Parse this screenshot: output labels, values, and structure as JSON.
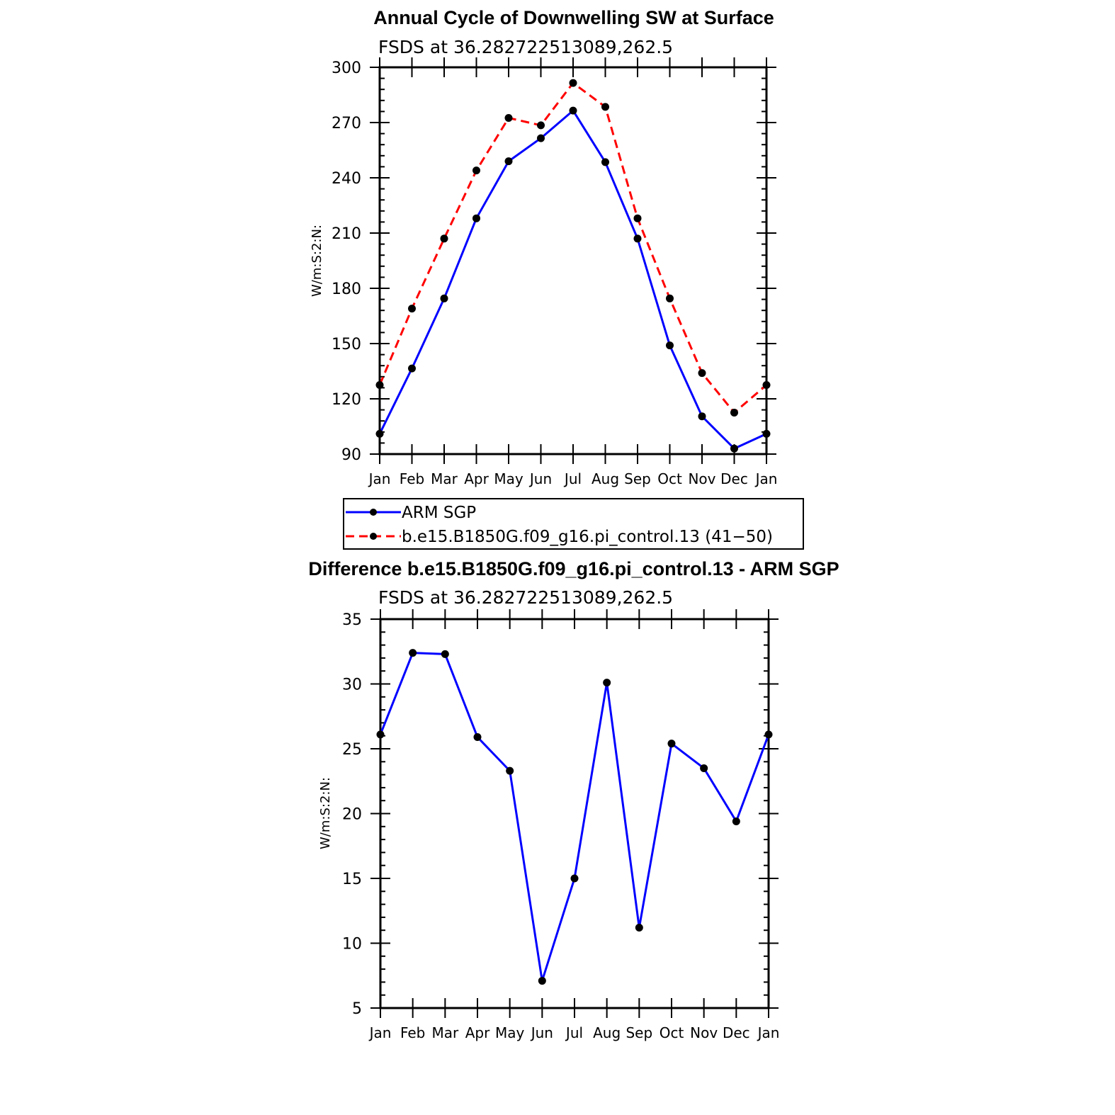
{
  "chart_data": [
    {
      "type": "line",
      "title": "Annual Cycle of Downwelling SW at Surface",
      "subtitle": "FSDS at 36.282722513089,262.5",
      "ylabel": "W/m:S:2:N:",
      "xlabel": "",
      "categories": [
        "Jan",
        "Feb",
        "Mar",
        "Apr",
        "May",
        "Jun",
        "Jul",
        "Aug",
        "Sep",
        "Oct",
        "Nov",
        "Dec",
        "Jan"
      ],
      "ylim": [
        90,
        300
      ],
      "yticks": [
        90,
        120,
        150,
        180,
        210,
        240,
        270,
        300
      ],
      "series": [
        {
          "name": "ARM SGP",
          "color": "#0000ff",
          "dash": "solid",
          "values": [
            101,
            136.5,
            174.5,
            218,
            249,
            261.5,
            276.5,
            248.5,
            207,
            149,
            110.5,
            93,
            101
          ]
        },
        {
          "name": "b.e15.B1850G.f09_g16.pi_control.13 (41−50)",
          "color": "#ff0000",
          "dash": "dashed",
          "values": [
            127.5,
            169,
            207,
            244,
            272.5,
            268.5,
            291.5,
            278.5,
            218,
            174.5,
            134,
            112.5,
            127.5
          ]
        }
      ],
      "legend_placement": "below"
    },
    {
      "type": "line",
      "title": "Difference b.e15.B1850G.f09_g16.pi_control.13 - ARM SGP",
      "subtitle": "FSDS at 36.282722513089,262.5",
      "ylabel": "W/m:S:2:N:",
      "xlabel": "",
      "categories": [
        "Jan",
        "Feb",
        "Mar",
        "Apr",
        "May",
        "Jun",
        "Jul",
        "Aug",
        "Sep",
        "Oct",
        "Nov",
        "Dec",
        "Jan"
      ],
      "ylim": [
        5,
        35
      ],
      "yticks": [
        5,
        10,
        15,
        20,
        25,
        30,
        35
      ],
      "series": [
        {
          "color": "#0000ff",
          "dash": "solid",
          "values": [
            26.1,
            32.4,
            32.3,
            25.9,
            23.3,
            7.1,
            15,
            30.1,
            11.2,
            25.4,
            23.5,
            19.4,
            26.1
          ]
        }
      ]
    }
  ]
}
